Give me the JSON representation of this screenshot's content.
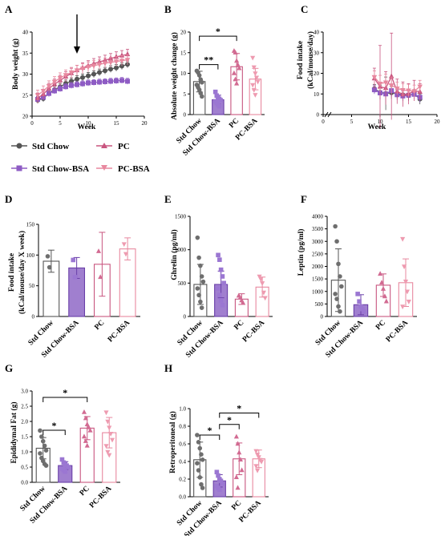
{
  "colors": {
    "std_chow": "#555555",
    "std_chow_bsa": "#8e5cc4",
    "pc": "#c8557f",
    "pc_bsa": "#e8889f",
    "fill_std_chow_bsa": "#a07fcf"
  },
  "legend": {
    "items": [
      {
        "label": "Std Chow",
        "marker": "circle",
        "color": "#555555"
      },
      {
        "label": "PC",
        "marker": "triangle-up",
        "color": "#c8557f"
      },
      {
        "label": "Std Chow-BSA",
        "marker": "square",
        "color": "#8e5cc4"
      },
      {
        "label": "PC-BSA",
        "marker": "triangle-down",
        "color": "#e8889f"
      }
    ]
  },
  "chart_data": [
    {
      "panel": "A",
      "type": "line",
      "xlabel": "Week",
      "ylabel": "Body weight (g)",
      "xlim": [
        0,
        20
      ],
      "ylim": [
        20,
        40
      ],
      "xticks": [
        0,
        5,
        10,
        15,
        20
      ],
      "yticks": [
        20,
        25,
        30,
        35,
        40
      ],
      "arrow_at_x": 8,
      "x": [
        1,
        2,
        3,
        4,
        5,
        6,
        7,
        8,
        9,
        10,
        11,
        12,
        13,
        14,
        15,
        16,
        17
      ],
      "series": [
        {
          "name": "Std Chow",
          "color": "#555555",
          "marker": "circle",
          "values": [
            23.8,
            24.2,
            25.5,
            26.3,
            27.0,
            27.8,
            28.3,
            28.8,
            29.2,
            29.6,
            30.0,
            30.4,
            30.8,
            31.2,
            31.5,
            31.9,
            32.3
          ],
          "err": 0.8
        },
        {
          "name": "Std Chow-BSA",
          "color": "#8e5cc4",
          "marker": "square",
          "values": [
            24.0,
            24.5,
            25.4,
            26.0,
            26.5,
            27.0,
            27.3,
            27.5,
            27.7,
            27.9,
            28.0,
            28.1,
            28.2,
            28.3,
            28.4,
            28.5,
            28.3
          ],
          "err": 0.7
        },
        {
          "name": "PC",
          "color": "#c8557f",
          "marker": "triangle-up",
          "values": [
            24.3,
            25.2,
            26.6,
            27.6,
            28.5,
            29.4,
            30.2,
            30.9,
            31.5,
            32.0,
            32.5,
            32.9,
            33.3,
            33.7,
            34.1,
            34.4,
            34.7
          ],
          "err": 1.2
        },
        {
          "name": "PC-BSA",
          "color": "#e8889f",
          "marker": "triangle-down",
          "values": [
            25.0,
            26.0,
            27.2,
            28.2,
            29.1,
            29.8,
            30.4,
            30.9,
            31.3,
            31.7,
            32.0,
            32.3,
            32.6,
            32.8,
            33.0,
            33.2,
            33.4
          ],
          "err": 1.2
        }
      ]
    },
    {
      "panel": "B",
      "type": "bar",
      "ylabel": "Absolute weight change (g)",
      "ylim": [
        0,
        20
      ],
      "yticks": [
        0,
        5,
        10,
        15,
        20
      ],
      "categories": [
        "Std Chow",
        "Std Chow-BSA",
        "PC",
        "PC-BSA"
      ],
      "values": [
        8.0,
        3.6,
        11.6,
        8.6
      ],
      "errors": [
        2.5,
        1.1,
        3.2,
        2.6
      ],
      "points": [
        [
          10.6,
          10.2,
          9.5,
          8.5,
          7.8,
          7.2,
          6.6,
          6.0,
          5.2,
          4.4
        ],
        [
          5.5,
          4.6,
          4.2,
          3.8,
          3.5,
          3.2,
          2.8,
          2.4,
          2.0
        ],
        [
          15.4,
          15.0,
          13.0,
          12.0,
          11.2,
          10.0,
          8.5,
          7.5
        ],
        [
          13.8,
          11.5,
          10.0,
          9.0,
          8.0,
          7.2,
          6.0,
          4.8
        ]
      ],
      "significance": [
        {
          "from": 0,
          "to": 1,
          "label": "**"
        },
        {
          "from": 0,
          "to": 2,
          "label": "*"
        }
      ]
    },
    {
      "panel": "C",
      "type": "line",
      "xlabel": "Week",
      "ylabel": "Food intake (kCal/mouse/day)",
      "xlim": [
        0,
        20
      ],
      "ylim": [
        0,
        40
      ],
      "xticks": [
        0,
        5,
        10,
        15,
        20
      ],
      "yticks": [
        0,
        10,
        20,
        30,
        40
      ],
      "axis_break": true,
      "x": [
        9,
        10,
        11,
        12,
        13,
        14,
        15,
        16,
        17
      ],
      "series": [
        {
          "name": "Std Chow",
          "color": "#555555",
          "marker": "circle",
          "values": [
            12.5,
            10.8,
            10.2,
            10.6,
            10.0,
            9.6,
            9.2,
            10.1,
            7.5
          ],
          "err": [
            2.0,
            3.5,
            8.0,
            3.0,
            2.0,
            3.0,
            2.5,
            2.0,
            2.5
          ]
        },
        {
          "name": "Std Chow-BSA",
          "color": "#8e5cc4",
          "marker": "square",
          "values": [
            12.0,
            10.5,
            10.0,
            11.6,
            9.6,
            9.0,
            9.4,
            9.8,
            8.4
          ],
          "err": [
            2.0,
            2.5,
            3.0,
            3.0,
            2.5,
            2.5,
            2.0,
            2.0,
            2.5
          ]
        },
        {
          "name": "PC",
          "color": "#c8557f",
          "marker": "triangle-up",
          "values": [
            17.5,
            13.5,
            12.8,
            18.5,
            11.2,
            9.8,
            10.0,
            11.6,
            11.0
          ],
          "err": [
            5.0,
            20.0,
            8.0,
            21.0,
            6.0,
            6.0,
            5.0,
            5.0,
            4.0
          ]
        },
        {
          "name": "PC-BSA",
          "color": "#e8889f",
          "marker": "triangle-down",
          "values": [
            18.2,
            15.0,
            15.6,
            14.2,
            12.7,
            11.9,
            11.7,
            11.3,
            13.6
          ],
          "err": [
            3.0,
            4.0,
            4.0,
            4.0,
            3.0,
            3.0,
            3.0,
            3.0,
            3.0
          ]
        }
      ]
    },
    {
      "panel": "D",
      "type": "bar",
      "ylabel": "Food intake (kCal/mouse/day X week)",
      "ylim": [
        0,
        150
      ],
      "yticks": [
        0,
        50,
        100,
        150
      ],
      "categories": [
        "Std Chow",
        "Std Chow-BSA",
        "PC",
        "PC-BSA"
      ],
      "values": [
        90,
        79,
        85,
        110
      ],
      "errors": [
        18,
        17,
        52,
        18
      ],
      "points": [
        [
          98,
          80
        ],
        [
          92,
          64
        ],
        [
          106,
          64
        ],
        [
          118,
          102
        ]
      ],
      "significance": []
    },
    {
      "panel": "E",
      "type": "bar",
      "ylabel": "Ghrelin (pg/ml)",
      "ylim": [
        0,
        1500
      ],
      "yticks": [
        0,
        500,
        1000,
        1500
      ],
      "categories": [
        "Std Chow",
        "Std Chow-BSA",
        "PC",
        "PC-BSA"
      ],
      "values": [
        480,
        480,
        260,
        440
      ],
      "errors": [
        300,
        200,
        80,
        150
      ],
      "points": [
        [
          1180,
          880,
          760,
          600,
          520,
          420,
          320,
          220,
          130
        ],
        [
          920,
          850,
          700,
          600,
          500,
          420,
          320,
          240,
          170
        ],
        [
          310,
          280,
          240,
          200
        ],
        [
          600,
          560,
          500,
          360,
          280
        ]
      ],
      "significance": []
    },
    {
      "panel": "F",
      "type": "bar",
      "ylabel": "Leptin (pg/ml)",
      "ylim": [
        0,
        4000
      ],
      "yticks": [
        0,
        500,
        1000,
        1500,
        2000,
        2500,
        3000,
        3500,
        4000
      ],
      "categories": [
        "Std Chow",
        "Std Chow-BSA",
        "PC",
        "PC-BSA"
      ],
      "values": [
        1450,
        470,
        1250,
        1350
      ],
      "errors": [
        1250,
        400,
        450,
        950
      ],
      "points": [
        [
          3600,
          3000,
          2100,
          1600,
          1200,
          900,
          700,
          400,
          200
        ],
        [
          900,
          600,
          400,
          300,
          200
        ],
        [
          1700,
          1350,
          1100,
          800,
          600
        ],
        [
          3100,
          2000,
          1400,
          1000,
          600,
          400
        ]
      ],
      "significance": []
    },
    {
      "panel": "G",
      "type": "bar",
      "ylabel": "Epididymal Fat (g)",
      "ylim": [
        0,
        3.0
      ],
      "yticks": [
        0.0,
        0.5,
        1.0,
        1.5,
        2.0,
        2.5,
        3.0
      ],
      "categories": [
        "Std Chow",
        "Std Chow-BSA",
        "PC",
        "PC-BSA"
      ],
      "values": [
        1.12,
        0.55,
        1.78,
        1.63
      ],
      "errors": [
        0.35,
        0.13,
        0.38,
        0.5
      ],
      "points": [
        [
          1.7,
          1.5,
          1.35,
          1.2,
          1.05,
          0.95,
          0.8,
          0.7,
          0.6,
          0.55
        ],
        [
          0.75,
          0.65,
          0.6,
          0.55,
          0.5,
          0.45,
          0.4,
          0.35
        ],
        [
          2.3,
          2.1,
          1.9,
          1.8,
          1.7,
          1.5,
          1.35,
          1.2
        ],
        [
          2.3,
          2.0,
          1.8,
          1.6,
          1.4,
          1.2,
          1.0,
          0.9
        ]
      ],
      "significance": [
        {
          "from": 0,
          "to": 1,
          "label": "*"
        },
        {
          "from": 0,
          "to": 2,
          "label": "*"
        }
      ]
    },
    {
      "panel": "H",
      "type": "bar",
      "ylabel": "Retroperitoneal (g)",
      "ylim": [
        0,
        1.0
      ],
      "yticks": [
        0.0,
        0.2,
        0.4,
        0.6,
        0.8,
        1.0
      ],
      "categories": [
        "Std Chow",
        "Std Chow-BSA",
        "PC",
        "PC-BSA"
      ],
      "values": [
        0.42,
        0.18,
        0.43,
        0.43
      ],
      "errors": [
        0.2,
        0.07,
        0.18,
        0.1
      ],
      "points": [
        [
          0.7,
          0.62,
          0.55,
          0.48,
          0.42,
          0.38,
          0.3,
          0.22,
          0.14,
          0.1
        ],
        [
          0.28,
          0.24,
          0.2,
          0.18,
          0.15,
          0.12,
          0.1,
          0.08
        ],
        [
          0.68,
          0.6,
          0.5,
          0.42,
          0.3,
          0.22,
          0.1
        ],
        [
          0.52,
          0.48,
          0.45,
          0.42,
          0.4,
          0.35,
          0.3
        ]
      ],
      "significance": [
        {
          "from": 0,
          "to": 1,
          "label": "*"
        },
        {
          "from": 1,
          "to": 2,
          "label": "*"
        },
        {
          "from": 1,
          "to": 3,
          "label": "*"
        }
      ]
    }
  ]
}
